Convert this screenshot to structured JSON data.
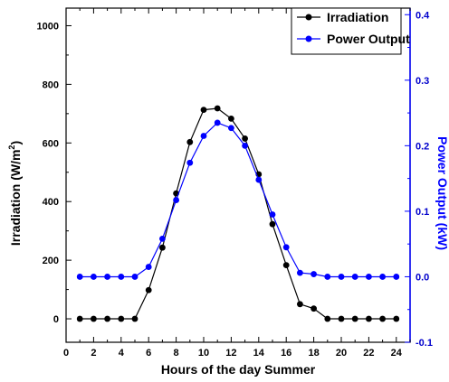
{
  "chart_data": {
    "type": "line",
    "xlabel": "Hours of the day Summer",
    "ylabel": "Irradiation (W/m",
    "ylabel_superscript": "2",
    "ylabel_suffix": ")",
    "ylabel_right": "Power Output (kW)",
    "x": [
      1,
      2,
      3,
      4,
      5,
      6,
      7,
      8,
      9,
      10,
      11,
      12,
      13,
      14,
      15,
      16,
      17,
      18,
      19,
      20,
      21,
      22,
      23,
      24
    ],
    "xlim": [
      0,
      25
    ],
    "xticks": [
      "0",
      "2",
      "4",
      "6",
      "8",
      "10",
      "12",
      "14",
      "16",
      "18",
      "20",
      "22",
      "24"
    ],
    "ylim": [
      -80,
      1060
    ],
    "yticks": [
      "0",
      "200",
      "400",
      "600",
      "800",
      "1000"
    ],
    "y2lim": [
      -0.1,
      0.41
    ],
    "y2ticks": [
      "-0.1",
      "0.0",
      "0.1",
      "0.2",
      "0.3",
      "0.4"
    ],
    "series": [
      {
        "name": "Irradiation",
        "axis": "left",
        "color": "#000000",
        "values": [
          0,
          0,
          0,
          0,
          0,
          98,
          243,
          428,
          603,
          713,
          718,
          683,
          615,
          493,
          323,
          183,
          50,
          35,
          0,
          0,
          0,
          0,
          0,
          0
        ]
      },
      {
        "name": "Power Output",
        "axis": "right",
        "color": "#0000ff",
        "values": [
          0.0,
          0.0,
          0.0,
          0.0,
          0.0,
          0.015,
          0.058,
          0.117,
          0.174,
          0.215,
          0.235,
          0.227,
          0.2,
          0.148,
          0.095,
          0.045,
          0.006,
          0.004,
          0.0,
          0.0,
          0.0,
          0.0,
          0.0,
          0.0
        ]
      }
    ],
    "legend": "top-right",
    "grid": false
  }
}
